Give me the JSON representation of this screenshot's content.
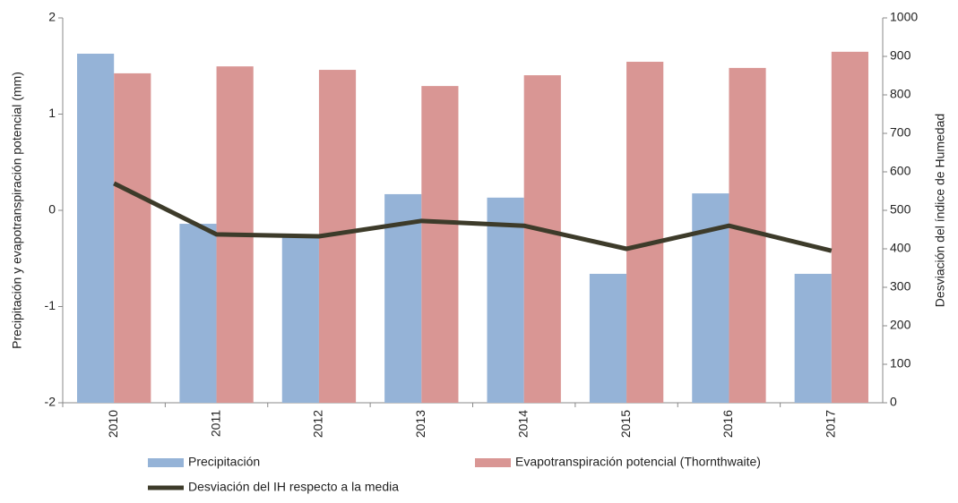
{
  "chart_data": {
    "type": "bar-line",
    "y_label": "Precipitación y evapotranspiración potencial (mm)",
    "y2_label": "Desviación del índice de Humedad",
    "categories": [
      "2010",
      "2011",
      "2012",
      "2013",
      "2014",
      "2015",
      "2016",
      "2017"
    ],
    "ylim": [
      -2,
      2
    ],
    "yticks": [
      -2,
      -1,
      0,
      1,
      2
    ],
    "y2lim": [
      0,
      1000
    ],
    "y2ticks": [
      0,
      100,
      200,
      300,
      400,
      500,
      600,
      700,
      800,
      900,
      1000
    ],
    "series": [
      {
        "name": "Precipitación",
        "type": "bar",
        "axis": "y2",
        "color": "#95b3d7",
        "values": [
          907,
          465,
          430,
          542,
          533,
          335,
          544,
          335
        ]
      },
      {
        "name": "Evapotranspiración potencial (Thornthwaite)",
        "type": "bar",
        "axis": "y2",
        "color": "#d99694",
        "values": [
          856,
          874,
          865,
          823,
          851,
          886,
          870,
          912
        ]
      },
      {
        "name": "Desviación del IH respecto a la media",
        "type": "line",
        "axis": "y",
        "color": "#3d3b2a",
        "values": [
          0.28,
          -0.25,
          -0.27,
          -0.11,
          -0.16,
          -0.4,
          -0.16,
          -0.42
        ]
      }
    ]
  }
}
